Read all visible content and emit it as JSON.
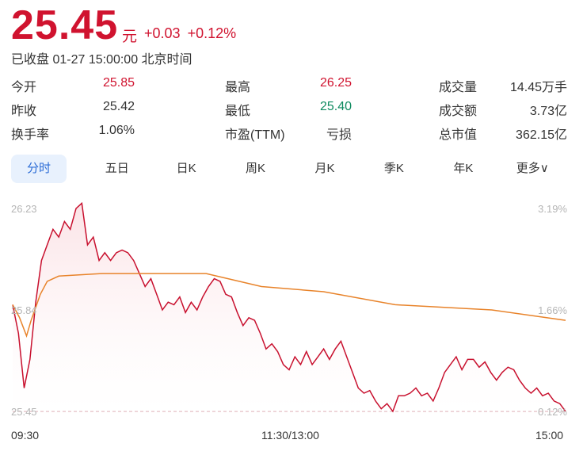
{
  "header": {
    "price": "25.45",
    "unit": "元",
    "change": "+0.03",
    "change_pct": "+0.12%",
    "status": "已收盘 01-27 15:00:00 北京时间"
  },
  "quote": [
    [
      {
        "label": "今开",
        "value": "25.85",
        "color": "red"
      },
      {
        "label": "最高",
        "value": "26.25",
        "color": "red"
      },
      {
        "label": "成交量",
        "value": "14.45万手",
        "color": ""
      }
    ],
    [
      {
        "label": "昨收",
        "value": "25.42",
        "color": ""
      },
      {
        "label": "最低",
        "value": "25.40",
        "color": "green"
      },
      {
        "label": "成交额",
        "value": "3.73亿",
        "color": ""
      }
    ],
    [
      {
        "label": "换手率",
        "value": "1.06%",
        "color": ""
      },
      {
        "label": "市盈(TTM)",
        "value": "亏损",
        "color": ""
      },
      {
        "label": "总市值",
        "value": "362.15亿",
        "color": ""
      }
    ]
  ],
  "tabs": [
    {
      "label": "分时",
      "active": true
    },
    {
      "label": "五日"
    },
    {
      "label": "日K"
    },
    {
      "label": "周K"
    },
    {
      "label": "月K"
    },
    {
      "label": "季K"
    },
    {
      "label": "年K"
    },
    {
      "label": "更多∨"
    }
  ],
  "chart_data": {
    "type": "line",
    "colors": {
      "price": "#c8102e",
      "avg": "#e8832a",
      "fill": "#fbe3e6"
    },
    "y_left_ticks": [
      "26.23",
      "25.84",
      "25.45"
    ],
    "y_right_ticks": [
      "3.19%",
      "1.66%",
      "0.12%"
    ],
    "ylim": [
      25.45,
      26.23
    ],
    "x_ticks": [
      "09:30",
      "11:30/13:00",
      "15:00"
    ],
    "price": [
      25.86,
      25.75,
      25.54,
      25.65,
      25.87,
      26.03,
      26.09,
      26.15,
      26.12,
      26.18,
      26.15,
      26.23,
      26.25,
      26.09,
      26.12,
      26.03,
      26.06,
      26.03,
      26.06,
      26.07,
      26.06,
      26.03,
      25.98,
      25.93,
      25.96,
      25.9,
      25.84,
      25.87,
      25.86,
      25.89,
      25.83,
      25.87,
      25.84,
      25.89,
      25.93,
      25.96,
      25.95,
      25.9,
      25.89,
      25.83,
      25.78,
      25.81,
      25.8,
      25.75,
      25.69,
      25.71,
      25.68,
      25.63,
      25.61,
      25.66,
      25.63,
      25.68,
      25.63,
      25.66,
      25.69,
      25.65,
      25.69,
      25.72,
      25.66,
      25.6,
      25.54,
      25.52,
      25.53,
      25.49,
      25.46,
      25.48,
      25.45,
      25.51,
      25.51,
      25.52,
      25.54,
      25.51,
      25.52,
      25.49,
      25.54,
      25.6,
      25.63,
      25.66,
      25.61,
      25.65,
      25.65,
      25.62,
      25.64,
      25.6,
      25.57,
      25.6,
      25.62,
      25.61,
      25.57,
      25.54,
      25.52,
      25.54,
      25.51,
      25.52,
      25.49,
      25.48,
      25.45
    ],
    "avg": [
      [
        "09:30",
        25.86
      ],
      [
        "09:33",
        25.81
      ],
      [
        "09:36",
        25.74
      ],
      [
        "09:38",
        25.8
      ],
      [
        "09:42",
        25.9
      ],
      [
        "09:45",
        25.95
      ],
      [
        "09:50",
        25.97
      ],
      [
        "10:09",
        25.98
      ],
      [
        "10:25",
        25.98
      ],
      [
        "10:54",
        25.98
      ],
      [
        "11:18",
        25.93
      ],
      [
        "13:15",
        25.91
      ],
      [
        "13:46",
        25.86
      ],
      [
        "14:28",
        25.84
      ],
      [
        "15:00",
        25.8
      ]
    ]
  }
}
